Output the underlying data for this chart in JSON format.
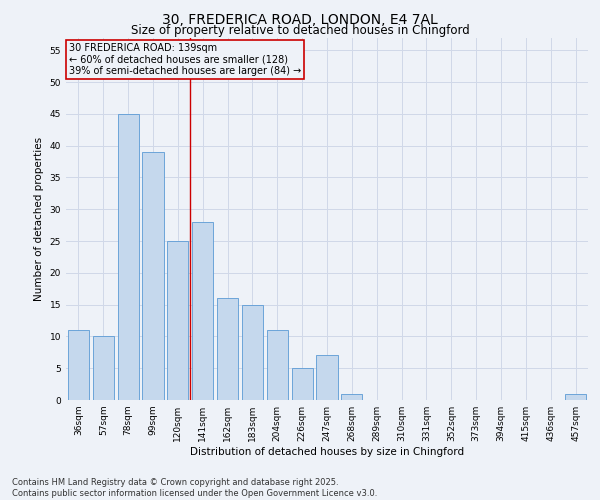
{
  "title": "30, FREDERICA ROAD, LONDON, E4 7AL",
  "subtitle": "Size of property relative to detached houses in Chingford",
  "xlabel": "Distribution of detached houses by size in Chingford",
  "ylabel": "Number of detached properties",
  "categories": [
    "36sqm",
    "57sqm",
    "78sqm",
    "99sqm",
    "120sqm",
    "141sqm",
    "162sqm",
    "183sqm",
    "204sqm",
    "226sqm",
    "247sqm",
    "268sqm",
    "289sqm",
    "310sqm",
    "331sqm",
    "352sqm",
    "373sqm",
    "394sqm",
    "415sqm",
    "436sqm",
    "457sqm"
  ],
  "values": [
    11,
    10,
    45,
    39,
    25,
    28,
    16,
    15,
    11,
    5,
    7,
    1,
    0,
    0,
    0,
    0,
    0,
    0,
    0,
    0,
    1
  ],
  "bar_color": "#c5d8ed",
  "bar_edge_color": "#5b9bd5",
  "grid_color": "#d0d8e8",
  "bg_color": "#eef2f8",
  "annotation_line1": "30 FREDERICA ROAD: 139sqm",
  "annotation_line2": "← 60% of detached houses are smaller (128)",
  "annotation_line3": "39% of semi-detached houses are larger (84) →",
  "annotation_box_color": "#cc0000",
  "property_line_x": 4.5,
  "ylim": [
    0,
    57
  ],
  "yticks": [
    0,
    5,
    10,
    15,
    20,
    25,
    30,
    35,
    40,
    45,
    50,
    55
  ],
  "footer_line1": "Contains HM Land Registry data © Crown copyright and database right 2025.",
  "footer_line2": "Contains public sector information licensed under the Open Government Licence v3.0.",
  "title_fontsize": 10,
  "subtitle_fontsize": 8.5,
  "axis_label_fontsize": 7.5,
  "tick_fontsize": 6.5,
  "annotation_fontsize": 7,
  "footer_fontsize": 6
}
